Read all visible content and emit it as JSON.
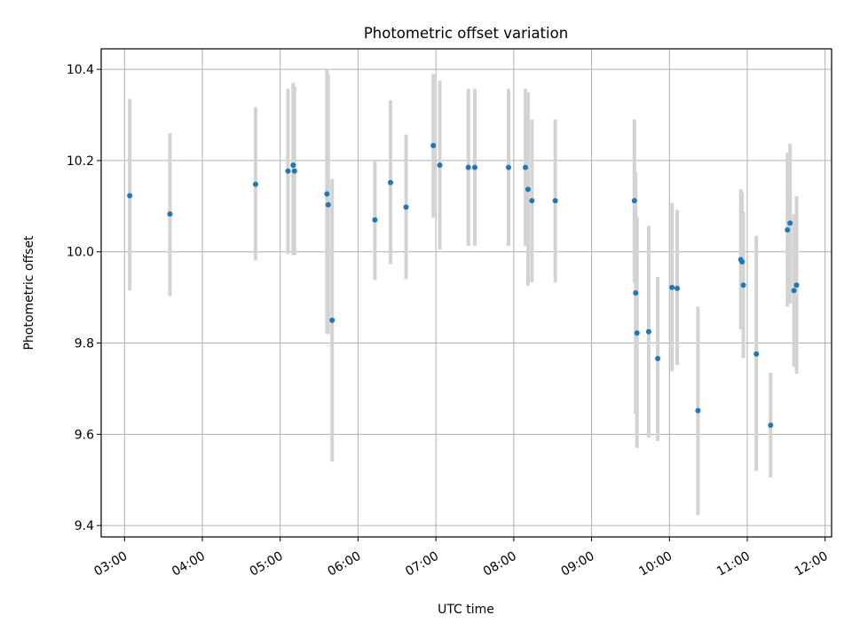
{
  "chart_data": {
    "type": "scatter",
    "title": "Photometric offset variation",
    "xlabel": "UTC time",
    "ylabel": "Photometric offset",
    "x_ticks": [
      "03:00",
      "04:00",
      "05:00",
      "06:00",
      "07:00",
      "08:00",
      "09:00",
      "10:00",
      "11:00",
      "12:00"
    ],
    "y_ticks": [
      "9.4",
      "9.6",
      "9.8",
      "10.0",
      "10.2",
      "10.4"
    ],
    "xlim": [
      "02:42",
      "12:05"
    ],
    "ylim": [
      9.375,
      10.445
    ],
    "grid": true,
    "colors": {
      "point": "#1f77b4",
      "errorbar": "#d3d3d3",
      "grid": "#b0b0b0"
    },
    "points": [
      {
        "t": "03:04",
        "y": 10.123,
        "lo": 9.915,
        "hi": 10.335
      },
      {
        "t": "03:35",
        "y": 10.083,
        "lo": 9.903,
        "hi": 10.26
      },
      {
        "t": "04:41",
        "y": 10.148,
        "lo": 9.982,
        "hi": 10.317
      },
      {
        "t": "05:06",
        "y": 10.177,
        "lo": 9.995,
        "hi": 10.357
      },
      {
        "t": "05:10",
        "y": 10.19,
        "lo": 9.993,
        "hi": 10.37
      },
      {
        "t": "05:11",
        "y": 10.177,
        "lo": 9.993,
        "hi": 10.362
      },
      {
        "t": "05:36",
        "y": 10.127,
        "lo": 9.82,
        "hi": 10.4
      },
      {
        "t": "05:37",
        "y": 10.103,
        "lo": 9.82,
        "hi": 10.388
      },
      {
        "t": "05:40",
        "y": 9.85,
        "lo": 9.54,
        "hi": 10.16
      },
      {
        "t": "06:13",
        "y": 10.07,
        "lo": 9.938,
        "hi": 10.2
      },
      {
        "t": "06:25",
        "y": 10.152,
        "lo": 9.973,
        "hi": 10.332
      },
      {
        "t": "06:37",
        "y": 10.098,
        "lo": 9.94,
        "hi": 10.257
      },
      {
        "t": "06:58",
        "y": 10.233,
        "lo": 10.075,
        "hi": 10.39
      },
      {
        "t": "07:03",
        "y": 10.19,
        "lo": 10.005,
        "hi": 10.375
      },
      {
        "t": "07:25",
        "y": 10.185,
        "lo": 10.013,
        "hi": 10.357
      },
      {
        "t": "07:30",
        "y": 10.185,
        "lo": 10.013,
        "hi": 10.357
      },
      {
        "t": "07:56",
        "y": 10.185,
        "lo": 10.013,
        "hi": 10.357
      },
      {
        "t": "08:09",
        "y": 10.185,
        "lo": 10.013,
        "hi": 10.357
      },
      {
        "t": "08:11",
        "y": 10.137,
        "lo": 9.925,
        "hi": 10.35
      },
      {
        "t": "08:14",
        "y": 10.112,
        "lo": 9.933,
        "hi": 10.29
      },
      {
        "t": "08:32",
        "y": 10.112,
        "lo": 9.933,
        "hi": 10.29
      },
      {
        "t": "09:33",
        "y": 10.112,
        "lo": 9.933,
        "hi": 10.29
      },
      {
        "t": "09:34",
        "y": 9.91,
        "lo": 9.645,
        "hi": 10.175
      },
      {
        "t": "09:35",
        "y": 9.822,
        "lo": 9.57,
        "hi": 10.077
      },
      {
        "t": "09:44",
        "y": 9.825,
        "lo": 9.593,
        "hi": 10.057
      },
      {
        "t": "09:51",
        "y": 9.766,
        "lo": 9.585,
        "hi": 9.945
      },
      {
        "t": "10:02",
        "y": 9.922,
        "lo": 9.738,
        "hi": 10.107
      },
      {
        "t": "10:06",
        "y": 9.92,
        "lo": 9.752,
        "hi": 10.092
      },
      {
        "t": "10:22",
        "y": 9.652,
        "lo": 9.423,
        "hi": 9.88
      },
      {
        "t": "10:55",
        "y": 9.983,
        "lo": 9.83,
        "hi": 10.137
      },
      {
        "t": "10:56",
        "y": 9.978,
        "lo": 9.83,
        "hi": 10.13
      },
      {
        "t": "10:57",
        "y": 9.927,
        "lo": 9.767,
        "hi": 10.087
      },
      {
        "t": "11:07",
        "y": 9.776,
        "lo": 9.52,
        "hi": 10.035
      },
      {
        "t": "11:18",
        "y": 9.62,
        "lo": 9.505,
        "hi": 9.735
      },
      {
        "t": "11:31",
        "y": 10.048,
        "lo": 9.88,
        "hi": 10.217
      },
      {
        "t": "11:33",
        "y": 10.063,
        "lo": 9.887,
        "hi": 10.237
      },
      {
        "t": "11:36",
        "y": 9.915,
        "lo": 9.748,
        "hi": 10.083
      },
      {
        "t": "11:38",
        "y": 9.927,
        "lo": 9.733,
        "hi": 10.122
      }
    ]
  }
}
